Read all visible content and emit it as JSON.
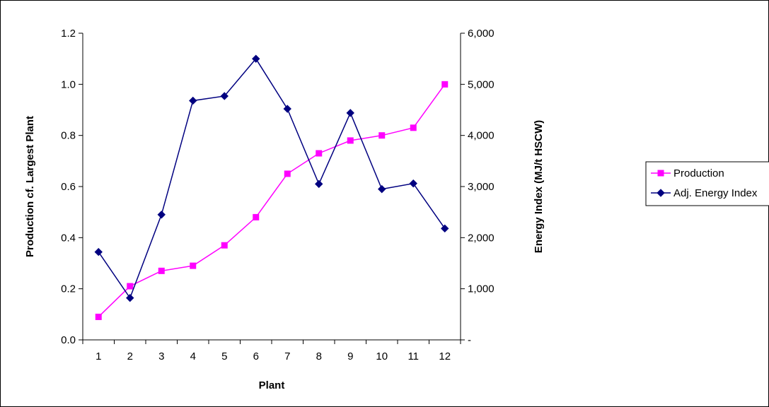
{
  "chart_data": {
    "type": "line",
    "title": "",
    "xlabel": "Plant",
    "ylabel": "Production cf. Largest Plant",
    "y2label": "Energy Index (MJ/t HSCW)",
    "categories": [
      "1",
      "2",
      "3",
      "4",
      "5",
      "6",
      "7",
      "8",
      "9",
      "10",
      "11",
      "12"
    ],
    "ylim": [
      0,
      1.2
    ],
    "yticks": [
      "0.0",
      "0.2",
      "0.4",
      "0.6",
      "0.8",
      "1.0",
      "1.2"
    ],
    "y2lim": [
      0,
      6000
    ],
    "y2ticks": [
      "-",
      "1,000",
      "2,000",
      "3,000",
      "4,000",
      "5,000",
      "6,000"
    ],
    "legend_position": "right",
    "grid": false,
    "series": [
      {
        "name": "Production",
        "axis": "left",
        "color": "#ff00ff",
        "marker": "square",
        "values": [
          0.09,
          0.21,
          0.27,
          0.29,
          0.37,
          0.48,
          0.65,
          0.73,
          0.78,
          0.8,
          0.83,
          1.0
        ]
      },
      {
        "name": "Adj. Energy Index",
        "axis": "right",
        "color": "#000080",
        "marker": "diamond",
        "values": [
          1720,
          820,
          2450,
          4680,
          4770,
          5500,
          4520,
          3050,
          4440,
          2950,
          3060,
          2180
        ]
      }
    ]
  }
}
